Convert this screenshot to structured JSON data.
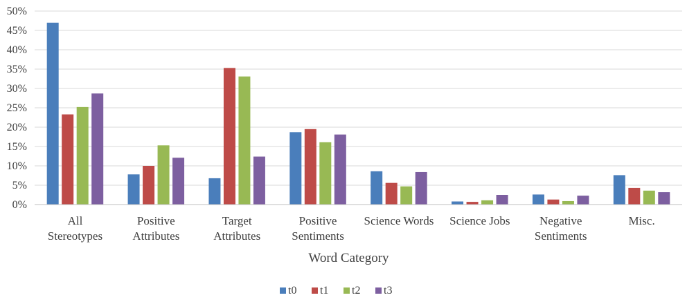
{
  "chart_data": {
    "type": "bar",
    "title": "",
    "xlabel": "Word Category",
    "ylabel": "",
    "ylim": [
      0,
      50
    ],
    "yticks": [
      "0%",
      "5%",
      "10%",
      "15%",
      "20%",
      "25%",
      "30%",
      "35%",
      "40%",
      "45%",
      "50%"
    ],
    "grid": true,
    "legend_position": "bottom",
    "categories": [
      [
        "All",
        "Stereotypes"
      ],
      [
        "Positive",
        "Attributes"
      ],
      [
        "Target",
        "Attributes"
      ],
      [
        "Positive",
        "Sentiments"
      ],
      [
        "Science Words"
      ],
      [
        "Science Jobs"
      ],
      [
        "Negative",
        "Sentiments"
      ],
      [
        "Misc."
      ]
    ],
    "series": [
      {
        "name": "t0",
        "color": "#4a7ebb",
        "values": [
          47,
          7.8,
          6.8,
          18.7,
          8.6,
          0.8,
          2.6,
          7.6
        ]
      },
      {
        "name": "t1",
        "color": "#be4b48",
        "values": [
          23.3,
          10,
          35.3,
          19.5,
          5.6,
          0.7,
          1.3,
          4.3
        ]
      },
      {
        "name": "t2",
        "color": "#98b954",
        "values": [
          25.2,
          15.3,
          33.1,
          16.1,
          4.7,
          1.1,
          0.9,
          3.6
        ]
      },
      {
        "name": "t3",
        "color": "#7d5fa0",
        "values": [
          28.7,
          12.1,
          12.4,
          18.1,
          8.4,
          2.5,
          2.3,
          3.2
        ]
      }
    ]
  }
}
